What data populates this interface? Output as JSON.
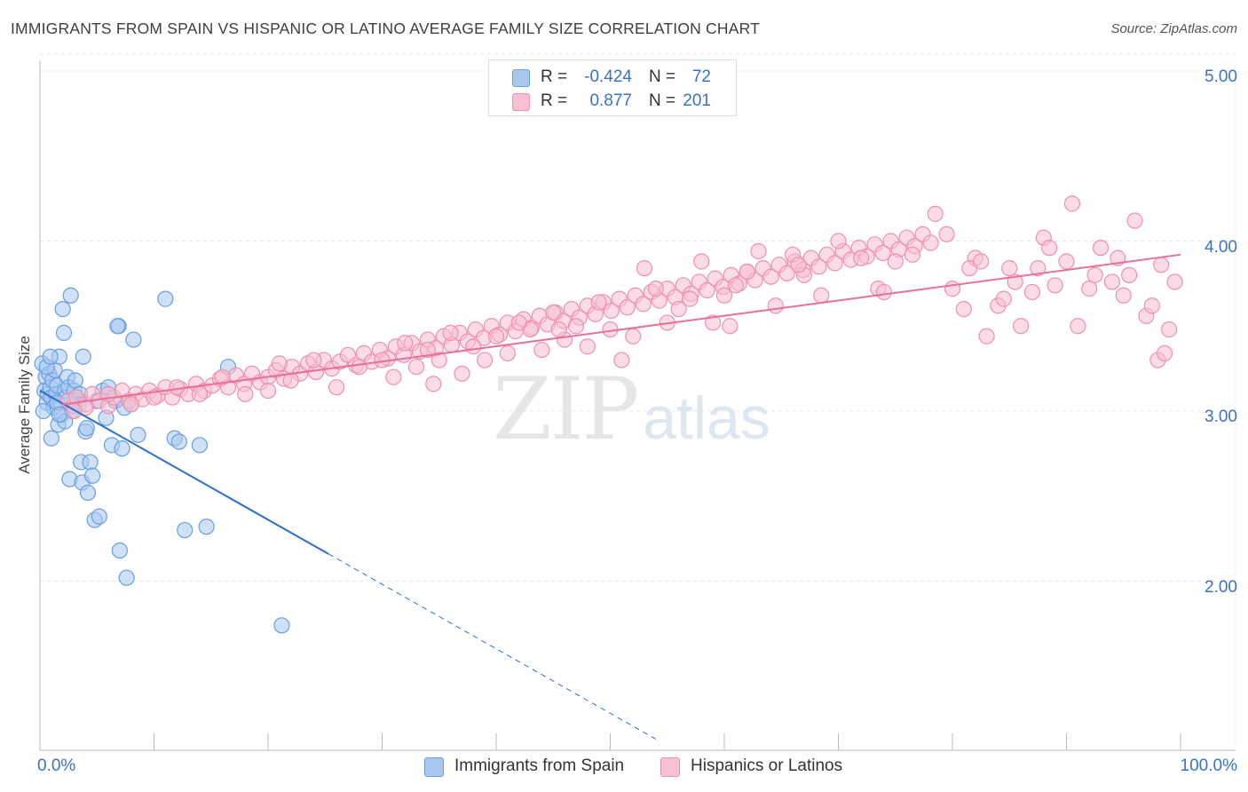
{
  "header": {
    "title": "IMMIGRANTS FROM SPAIN VS HISPANIC OR LATINO AVERAGE FAMILY SIZE CORRELATION CHART",
    "source": "Source: ZipAtlas.com"
  },
  "watermark": {
    "zip": "ZIP",
    "atlas": "atlas"
  },
  "stats": [
    {
      "r_label": "R =",
      "r_value": "-0.424",
      "n_label": "N =",
      "n_value": "72",
      "color": "#a8c8f0",
      "border": "#6a9ee0"
    },
    {
      "r_label": "R =",
      "r_value": "0.877",
      "n_label": "N =",
      "n_value": "201",
      "color": "#f8c0d0",
      "border": "#ee8fae"
    }
  ],
  "legend": [
    {
      "label": "Immigrants from Spain",
      "color": "#a8c8f0",
      "border": "#6a9ee0"
    },
    {
      "label": "Hispanics or Latinos",
      "color": "#f8c0d0",
      "border": "#ee8fae"
    }
  ],
  "chart_data": {
    "type": "scatter",
    "title": "IMMIGRANTS FROM SPAIN VS HISPANIC OR LATINO AVERAGE FAMILY SIZE CORRELATION CHART",
    "xlabel": "",
    "ylabel": "Average Family Size",
    "xlim": [
      0,
      100
    ],
    "ylim": [
      1.0,
      5.1
    ],
    "x_tick_labels": [
      "0.0%",
      "100.0%"
    ],
    "y_ticks": [
      2.0,
      3.0,
      4.0,
      5.0
    ],
    "y_tick_labels": [
      "2.00",
      "3.00",
      "4.00",
      "5.00"
    ],
    "grid": true,
    "series": [
      {
        "name": "Immigrants from Spain",
        "color": "#a8c8f0",
        "edge": "#6a9ee0",
        "trend_color": "#2a6fd0",
        "trend": {
          "x0": 0,
          "y0": 3.12,
          "x1": 25.3,
          "y1": 2.16,
          "dashed_to_x": 54
        },
        "points": [
          [
            0.2,
            3.28
          ],
          [
            0.4,
            3.12
          ],
          [
            0.5,
            3.2
          ],
          [
            0.6,
            3.05
          ],
          [
            0.7,
            3.1
          ],
          [
            0.8,
            3.22
          ],
          [
            0.9,
            3.14
          ],
          [
            1.0,
            3.08
          ],
          [
            1.1,
            3.18
          ],
          [
            1.2,
            3.02
          ],
          [
            1.3,
            3.24
          ],
          [
            1.4,
            3.1
          ],
          [
            1.5,
            3.15
          ],
          [
            1.6,
            2.92
          ],
          [
            1.7,
            3.32
          ],
          [
            1.8,
            3.05
          ],
          [
            1.9,
            2.98
          ],
          [
            2.0,
            3.6
          ],
          [
            2.1,
            3.46
          ],
          [
            2.2,
            3.12
          ],
          [
            2.3,
            3.08
          ],
          [
            2.4,
            3.2
          ],
          [
            2.5,
            3.14
          ],
          [
            2.6,
            2.6
          ],
          [
            2.7,
            3.68
          ],
          [
            2.8,
            3.0
          ],
          [
            3.0,
            3.12
          ],
          [
            3.1,
            3.18
          ],
          [
            3.3,
            3.06
          ],
          [
            3.5,
            3.1
          ],
          [
            3.6,
            2.7
          ],
          [
            3.7,
            2.58
          ],
          [
            3.8,
            3.32
          ],
          [
            4.0,
            2.88
          ],
          [
            4.2,
            2.52
          ],
          [
            4.4,
            2.7
          ],
          [
            4.6,
            2.62
          ],
          [
            4.8,
            2.36
          ],
          [
            5.0,
            3.06
          ],
          [
            5.2,
            2.38
          ],
          [
            5.5,
            3.12
          ],
          [
            5.8,
            2.96
          ],
          [
            6.0,
            3.14
          ],
          [
            6.3,
            2.8
          ],
          [
            6.6,
            3.06
          ],
          [
            6.9,
            3.5
          ],
          [
            7.0,
            2.18
          ],
          [
            7.2,
            2.78
          ],
          [
            7.4,
            3.02
          ],
          [
            7.6,
            2.02
          ],
          [
            8.0,
            3.04
          ],
          [
            8.2,
            3.42
          ],
          [
            8.6,
            2.86
          ],
          [
            11.0,
            3.66
          ],
          [
            11.8,
            2.84
          ],
          [
            12.2,
            2.82
          ],
          [
            12.7,
            2.3
          ],
          [
            14.0,
            2.8
          ],
          [
            14.6,
            2.32
          ],
          [
            16.5,
            3.26
          ],
          [
            21.2,
            1.74
          ],
          [
            0.3,
            3.0
          ],
          [
            0.6,
            3.26
          ],
          [
            1.0,
            2.84
          ],
          [
            1.5,
            3.05
          ],
          [
            2.2,
            2.94
          ],
          [
            3.4,
            3.04
          ],
          [
            4.1,
            2.9
          ],
          [
            6.8,
            3.5
          ],
          [
            0.9,
            3.32
          ],
          [
            1.7,
            2.98
          ],
          [
            2.9,
            3.03
          ]
        ]
      },
      {
        "name": "Hispanics or Latinos",
        "color": "#f8c0d0",
        "edge": "#ee8fae",
        "trend_color": "#e8709a",
        "trend": {
          "x0": 2,
          "y0": 3.04,
          "x1": 100,
          "y1": 3.92
        },
        "points": [
          [
            2.5,
            3.06
          ],
          [
            3.2,
            3.08
          ],
          [
            4.0,
            3.04
          ],
          [
            4.6,
            3.1
          ],
          [
            5.2,
            3.06
          ],
          [
            6.0,
            3.03
          ],
          [
            6.5,
            3.08
          ],
          [
            7.2,
            3.12
          ],
          [
            7.8,
            3.06
          ],
          [
            8.4,
            3.1
          ],
          [
            9.0,
            3.07
          ],
          [
            9.6,
            3.12
          ],
          [
            10.3,
            3.09
          ],
          [
            11.0,
            3.14
          ],
          [
            11.6,
            3.08
          ],
          [
            12.3,
            3.13
          ],
          [
            13.0,
            3.1
          ],
          [
            13.7,
            3.16
          ],
          [
            14.4,
            3.12
          ],
          [
            15.1,
            3.15
          ],
          [
            15.8,
            3.19
          ],
          [
            16.5,
            3.14
          ],
          [
            17.2,
            3.21
          ],
          [
            17.9,
            3.16
          ],
          [
            18.6,
            3.22
          ],
          [
            19.3,
            3.17
          ],
          [
            20.0,
            3.2
          ],
          [
            20.7,
            3.24
          ],
          [
            21.4,
            3.19
          ],
          [
            22.1,
            3.26
          ],
          [
            22.8,
            3.22
          ],
          [
            23.5,
            3.28
          ],
          [
            24.2,
            3.23
          ],
          [
            24.9,
            3.3
          ],
          [
            25.6,
            3.25
          ],
          [
            26.3,
            3.29
          ],
          [
            27.0,
            3.33
          ],
          [
            27.7,
            3.27
          ],
          [
            28.4,
            3.34
          ],
          [
            29.1,
            3.29
          ],
          [
            29.8,
            3.36
          ],
          [
            30.5,
            3.31
          ],
          [
            31.2,
            3.38
          ],
          [
            31.9,
            3.33
          ],
          [
            32.6,
            3.4
          ],
          [
            33.3,
            3.35
          ],
          [
            34.0,
            3.42
          ],
          [
            34.7,
            3.37
          ],
          [
            35.4,
            3.44
          ],
          [
            36.1,
            3.39
          ],
          [
            36.8,
            3.46
          ],
          [
            37.5,
            3.41
          ],
          [
            38.2,
            3.48
          ],
          [
            38.9,
            3.43
          ],
          [
            39.6,
            3.5
          ],
          [
            40.3,
            3.45
          ],
          [
            41.0,
            3.52
          ],
          [
            41.7,
            3.47
          ],
          [
            42.4,
            3.54
          ],
          [
            43.1,
            3.49
          ],
          [
            43.8,
            3.56
          ],
          [
            44.5,
            3.51
          ],
          [
            45.2,
            3.58
          ],
          [
            45.9,
            3.53
          ],
          [
            46.6,
            3.6
          ],
          [
            47.3,
            3.55
          ],
          [
            48.0,
            3.62
          ],
          [
            48.7,
            3.57
          ],
          [
            49.4,
            3.64
          ],
          [
            50.1,
            3.59
          ],
          [
            50.8,
            3.66
          ],
          [
            51.5,
            3.61
          ],
          [
            52.2,
            3.68
          ],
          [
            52.9,
            3.63
          ],
          [
            53.6,
            3.7
          ],
          [
            54.3,
            3.65
          ],
          [
            55.0,
            3.72
          ],
          [
            55.7,
            3.67
          ],
          [
            56.4,
            3.74
          ],
          [
            57.1,
            3.69
          ],
          [
            57.8,
            3.76
          ],
          [
            58.5,
            3.71
          ],
          [
            59.2,
            3.78
          ],
          [
            59.9,
            3.73
          ],
          [
            60.6,
            3.8
          ],
          [
            61.3,
            3.75
          ],
          [
            62.0,
            3.82
          ],
          [
            62.7,
            3.77
          ],
          [
            63.4,
            3.84
          ],
          [
            64.1,
            3.79
          ],
          [
            64.8,
            3.86
          ],
          [
            65.5,
            3.81
          ],
          [
            66.2,
            3.88
          ],
          [
            66.9,
            3.83
          ],
          [
            67.6,
            3.9
          ],
          [
            68.3,
            3.85
          ],
          [
            69.0,
            3.92
          ],
          [
            69.7,
            3.87
          ],
          [
            70.4,
            3.94
          ],
          [
            71.1,
            3.89
          ],
          [
            71.8,
            3.96
          ],
          [
            72.5,
            3.91
          ],
          [
            73.2,
            3.98
          ],
          [
            73.9,
            3.93
          ],
          [
            74.6,
            4.0
          ],
          [
            75.3,
            3.95
          ],
          [
            76.0,
            4.02
          ],
          [
            76.7,
            3.97
          ],
          [
            77.4,
            4.04
          ],
          [
            78.1,
            3.99
          ],
          [
            80.0,
            3.72
          ],
          [
            81.0,
            3.6
          ],
          [
            82.0,
            3.9
          ],
          [
            83.0,
            3.44
          ],
          [
            84.0,
            3.62
          ],
          [
            85.0,
            3.84
          ],
          [
            86.0,
            3.5
          ],
          [
            87.0,
            3.7
          ],
          [
            88.0,
            4.02
          ],
          [
            89.0,
            3.74
          ],
          [
            90.0,
            3.88
          ],
          [
            91.0,
            3.5
          ],
          [
            92.0,
            3.72
          ],
          [
            93.0,
            3.96
          ],
          [
            94.0,
            3.76
          ],
          [
            95.0,
            3.68
          ],
          [
            96.0,
            4.12
          ],
          [
            97.0,
            3.56
          ],
          [
            98.0,
            3.3
          ],
          [
            98.6,
            3.34
          ],
          [
            99.0,
            3.48
          ],
          [
            99.5,
            3.76
          ],
          [
            98.3,
            3.86
          ],
          [
            94.5,
            3.9
          ],
          [
            92.5,
            3.8
          ],
          [
            90.5,
            4.22
          ],
          [
            87.5,
            3.84
          ],
          [
            85.5,
            3.76
          ],
          [
            84.5,
            3.66
          ],
          [
            81.5,
            3.84
          ],
          [
            79.5,
            4.04
          ],
          [
            78.5,
            4.16
          ],
          [
            76.5,
            3.92
          ],
          [
            75.0,
            3.88
          ],
          [
            73.5,
            3.72
          ],
          [
            72.0,
            3.9
          ],
          [
            70.0,
            4.0
          ],
          [
            68.5,
            3.68
          ],
          [
            67.0,
            3.8
          ],
          [
            66.0,
            3.92
          ],
          [
            64.5,
            3.62
          ],
          [
            63.0,
            3.94
          ],
          [
            62.0,
            3.82
          ],
          [
            61.0,
            3.74
          ],
          [
            60.0,
            3.68
          ],
          [
            59.0,
            3.52
          ],
          [
            58.0,
            3.88
          ],
          [
            57.0,
            3.66
          ],
          [
            56.0,
            3.6
          ],
          [
            55.0,
            3.52
          ],
          [
            54.0,
            3.72
          ],
          [
            53.0,
            3.84
          ],
          [
            52.0,
            3.44
          ],
          [
            51.0,
            3.3
          ],
          [
            50.0,
            3.48
          ],
          [
            49.0,
            3.64
          ],
          [
            48.0,
            3.38
          ],
          [
            47.0,
            3.5
          ],
          [
            46.0,
            3.42
          ],
          [
            45.0,
            3.58
          ],
          [
            44.0,
            3.36
          ],
          [
            43.0,
            3.48
          ],
          [
            42.0,
            3.52
          ],
          [
            41.0,
            3.34
          ],
          [
            40.0,
            3.44
          ],
          [
            39.0,
            3.3
          ],
          [
            38.0,
            3.38
          ],
          [
            37.0,
            3.22
          ],
          [
            36.0,
            3.46
          ],
          [
            35.0,
            3.3
          ],
          [
            34.0,
            3.36
          ],
          [
            33.0,
            3.26
          ],
          [
            32.0,
            3.4
          ],
          [
            31.0,
            3.2
          ],
          [
            30.0,
            3.3
          ],
          [
            28.0,
            3.26
          ],
          [
            26.0,
            3.14
          ],
          [
            24.0,
            3.3
          ],
          [
            22.0,
            3.18
          ],
          [
            20.0,
            3.12
          ],
          [
            18.0,
            3.1
          ],
          [
            16.0,
            3.2
          ],
          [
            14.0,
            3.1
          ],
          [
            12.0,
            3.14
          ],
          [
            10.0,
            3.08
          ],
          [
            8.0,
            3.04
          ],
          [
            6.0,
            3.1
          ],
          [
            4.0,
            3.02
          ],
          [
            3.0,
            3.0
          ],
          [
            45.5,
            3.48
          ],
          [
            34.5,
            3.16
          ],
          [
            21.0,
            3.28
          ],
          [
            60.5,
            3.5
          ],
          [
            66.5,
            3.86
          ],
          [
            74.0,
            3.7
          ],
          [
            82.5,
            3.88
          ],
          [
            88.5,
            3.96
          ],
          [
            95.5,
            3.8
          ],
          [
            97.5,
            3.62
          ]
        ]
      }
    ]
  }
}
